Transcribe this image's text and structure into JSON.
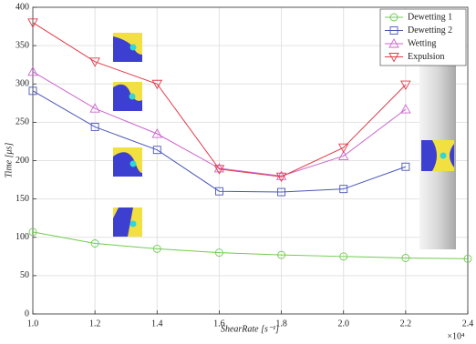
{
  "chart_data": {
    "type": "line",
    "x_label": "ShearRate [s⁻¹]",
    "y_label": "Time [μs]",
    "x_multiplier": "×10⁴",
    "x": [
      1.0,
      1.2,
      1.4,
      1.6,
      1.8,
      2.0,
      2.2,
      2.4
    ],
    "series": [
      {
        "name": "Dewetting 1",
        "color": "#6fcc4e",
        "marker": "circle",
        "values": [
          107,
          92,
          85,
          80,
          77,
          75,
          73,
          72
        ]
      },
      {
        "name": "Dewetting 2",
        "color": "#4a56b8",
        "marker": "square",
        "values": [
          291,
          244,
          214,
          160,
          159,
          163,
          192,
          null
        ]
      },
      {
        "name": "Wetting",
        "color": "#cc66cc",
        "marker": "triangle-up",
        "values": [
          316,
          268,
          235,
          190,
          180,
          206,
          267,
          null
        ]
      },
      {
        "name": "Expulsion",
        "color": "#e23a48",
        "marker": "triangle-down",
        "values": [
          380,
          329,
          300,
          189,
          179,
          217,
          299,
          null
        ]
      }
    ],
    "xlim": [
      1.0,
      2.4
    ],
    "xticks": [
      {
        "value": 1.0,
        "label": "1.0"
      },
      {
        "value": 1.2,
        "label": "1.2"
      },
      {
        "value": 1.4,
        "label": "1.4"
      },
      {
        "value": 1.6,
        "label": "1.6"
      },
      {
        "value": 1.8,
        "label": "1.8"
      },
      {
        "value": 2.0,
        "label": "2.0"
      },
      {
        "value": 2.2,
        "label": "2.2"
      },
      {
        "value": 2.4,
        "label": "2.4"
      }
    ],
    "ylim": [
      0,
      400
    ],
    "yticks": [
      0,
      50,
      100,
      150,
      200,
      250,
      300,
      350,
      400
    ],
    "grid": true,
    "legend": "upper right"
  }
}
